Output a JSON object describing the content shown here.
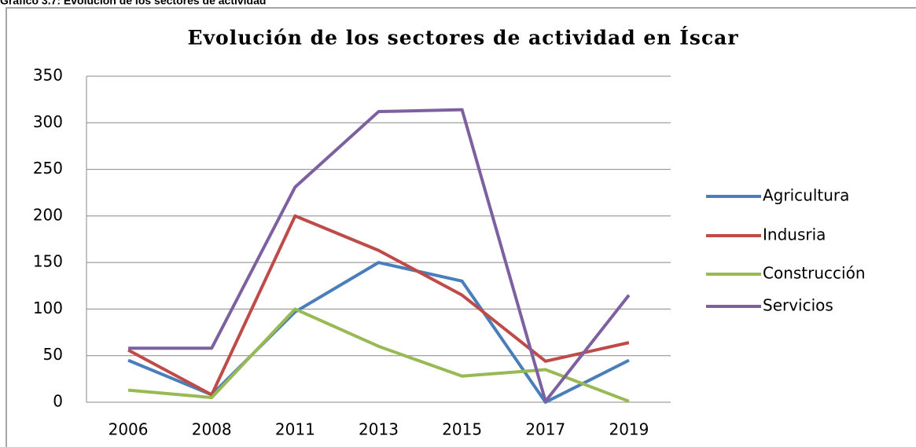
{
  "caption": "Gráfico 3.7: Evolución de los sectores de actividad",
  "chart_data": {
    "type": "line",
    "title": "Evolución de los sectores de actividad en Íscar",
    "categories": [
      "2006",
      "2008",
      "2011",
      "2013",
      "2015",
      "2017",
      "2019"
    ],
    "series": [
      {
        "name": "Agricultura",
        "color": "#4a7ebb",
        "values": [
          45,
          8,
          97,
          150,
          130,
          0,
          45
        ]
      },
      {
        "name": "Indusria",
        "color": "#be4b48",
        "values": [
          56,
          8,
          200,
          163,
          115,
          44,
          64
        ]
      },
      {
        "name": "Construcción",
        "color": "#98b954",
        "values": [
          13,
          5,
          100,
          60,
          28,
          35,
          1
        ]
      },
      {
        "name": "Servicios",
        "color": "#7d60a0",
        "values": [
          58,
          58,
          231,
          312,
          314,
          1,
          115
        ]
      }
    ],
    "ylim": [
      0,
      350
    ],
    "yticks": [
      0,
      50,
      100,
      150,
      200,
      250,
      300,
      350
    ],
    "grid": true,
    "legend": "right"
  }
}
